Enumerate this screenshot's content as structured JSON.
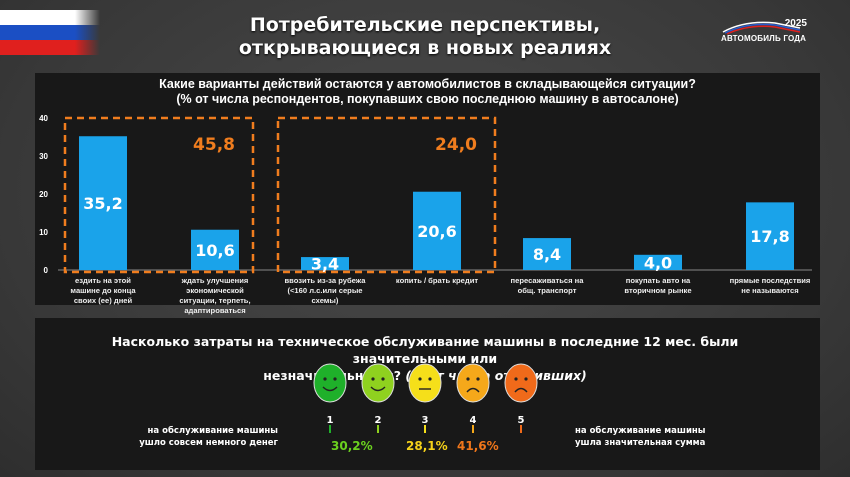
{
  "header": {
    "title_line1": "Потребительские перспективы,",
    "title_line2": "открывающиеся в новых реалиях",
    "logo_year": "2025",
    "logo_name": "АВТОМОБИЛЬ ГОДА"
  },
  "chart_data": {
    "type": "bar",
    "title_line1": "Какие варианты действий остаются у автомобилистов в складывающейся ситуации?",
    "title_line2": "(% от числа респондентов, покупавших свою последнюю машину в автосалоне)",
    "categories": [
      "ездить на этой\nмашине до конца\nсвоих (ее) дней",
      "ждать улучшения\nэкономической\nситуации, терпеть,\nадаптироваться",
      "ввозить из-за рубежа\n(<160 л.с.или серые\nсхемы)",
      "копить / брать кредит",
      "пересаживаться на\nобщ. транспорт",
      "покупать авто на\nвторичном рынке",
      "прямые последствия\nне называются"
    ],
    "values": [
      35.2,
      10.6,
      3.4,
      20.6,
      8.4,
      4.0,
      17.8
    ],
    "value_labels": [
      "35,2",
      "10,6",
      "3,4",
      "20,6",
      "8,4",
      "4,0",
      "17,8"
    ],
    "ylim": [
      0,
      40
    ],
    "yticks": [
      "0",
      "10",
      "20",
      "30",
      "40"
    ],
    "groups": [
      {
        "label": "45,8",
        "members": [
          0,
          1
        ]
      },
      {
        "label": "24,0",
        "members": [
          2,
          3
        ]
      }
    ],
    "bar_color": "#1aa3ea",
    "group_color": "#f07d1e"
  },
  "survey": {
    "question": "Насколько затраты на техническое обслуживание машины в последние 12 мес. были значительными или",
    "question_line2": "незначительными?",
    "question_note": "(% от числа ответивших)",
    "left_label": "на обслуживание машины\nушло совсем немного денег",
    "right_label": "на обслуживание машины\nушла значительная сумма",
    "scale": [
      {
        "num": "1",
        "mood": "happy",
        "color": "#1fb02a"
      },
      {
        "num": "2",
        "mood": "happy",
        "color": "#8fd11f"
      },
      {
        "num": "3",
        "mood": "neutral",
        "color": "#f5df1a"
      },
      {
        "num": "4",
        "mood": "sad",
        "color": "#f5a81a"
      },
      {
        "num": "5",
        "mood": "sad",
        "color": "#f06a1a"
      }
    ],
    "results": [
      {
        "label": "30,2%",
        "color": "#6bd11f"
      },
      {
        "label": "28,1%",
        "color": "#f5d21a"
      },
      {
        "label": "41,6%",
        "color": "#f0761a"
      }
    ]
  }
}
